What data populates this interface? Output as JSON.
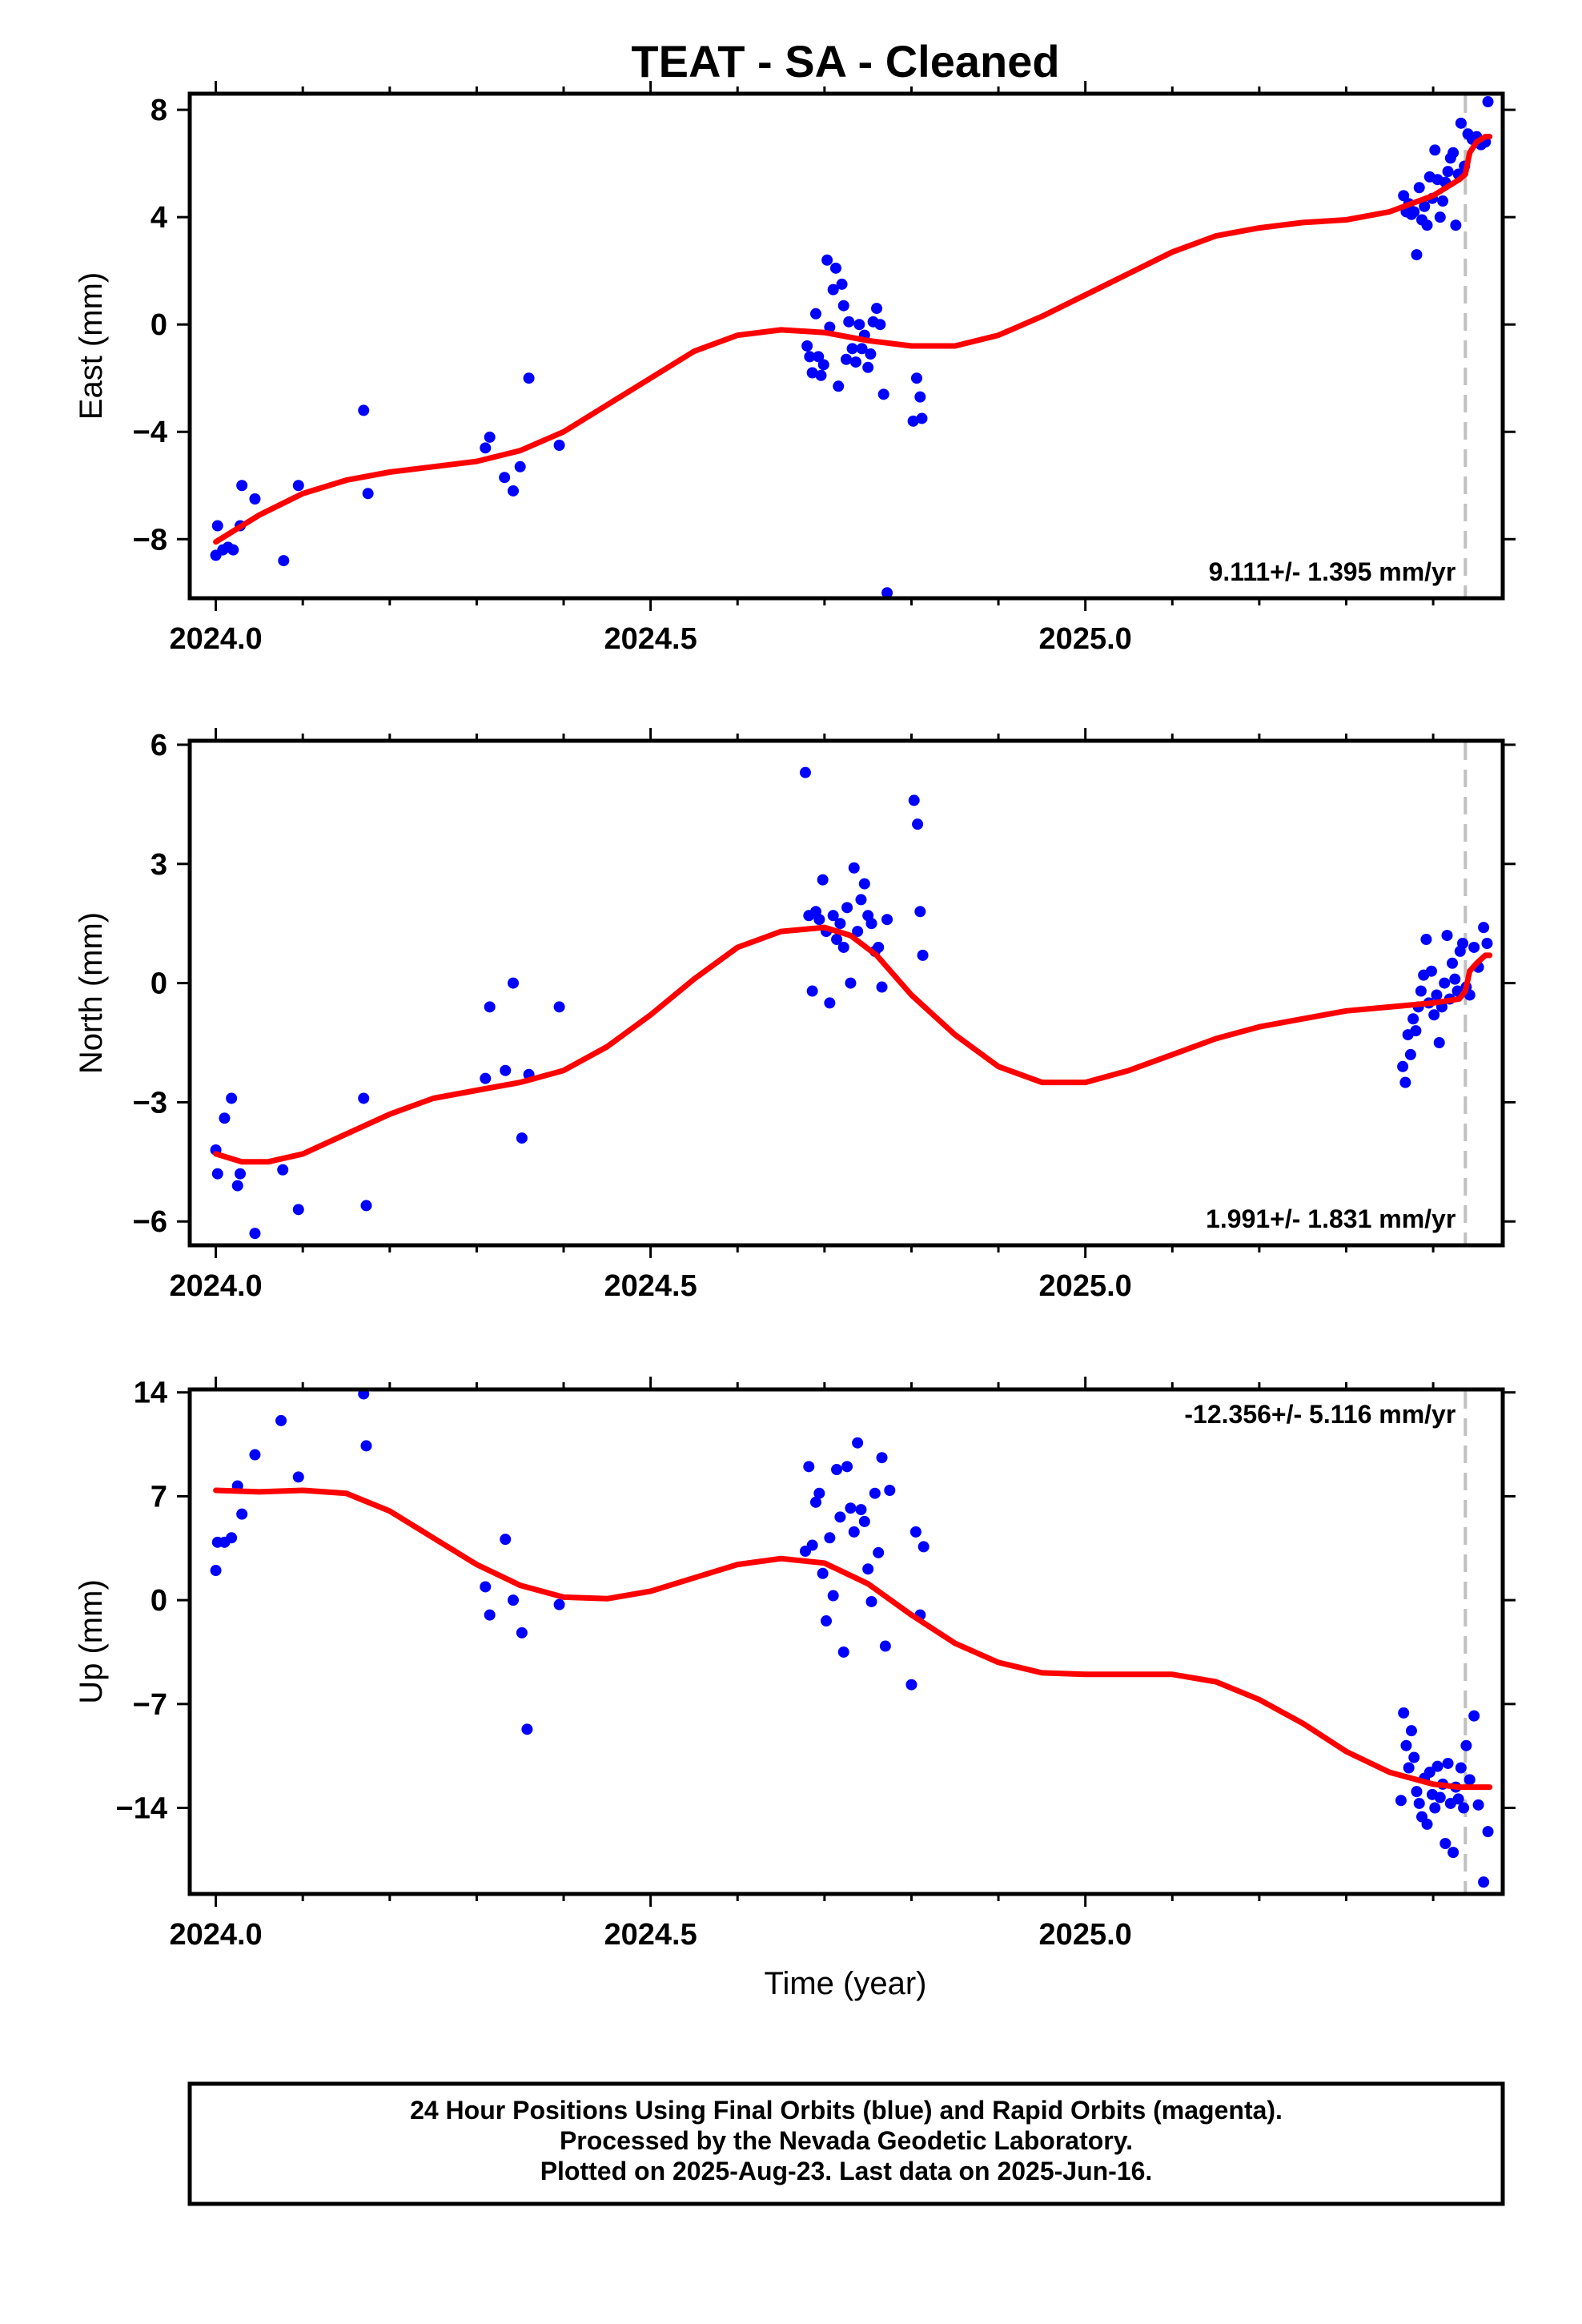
{
  "title": "TEAT  - SA - Cleaned",
  "x_axis_label": "Time (year)",
  "footer": {
    "lines": [
      "24 Hour Positions Using Final Orbits (blue) and Rapid Orbits (magenta).",
      "Processed by the Nevada Geodetic Laboratory.",
      "Plotted on 2025-Aug-23. Last data on 2025-Jun-16."
    ]
  },
  "colors": {
    "points": "#0000ff",
    "fit": "#ff0000",
    "marker_line": "#c0c0c0",
    "frame": "#000000"
  },
  "chart_data": [
    {
      "type": "scatter",
      "panel": "east",
      "ylabel": "East (mm)",
      "xlim": [
        2023.97,
        2025.48
      ],
      "ylim": [
        -10.2,
        8.6
      ],
      "xticks": [
        "2024.0",
        "2024.5",
        "2025.0"
      ],
      "xtick_values": [
        2024.0,
        2024.5,
        2025.0
      ],
      "yticks": [
        "8",
        "4",
        "0",
        "−4",
        "−8"
      ],
      "ytick_values": [
        8,
        4,
        0,
        -4,
        -8
      ],
      "rate_text": "9.111+/- 1.395 mm/yr",
      "rate_position": "bottom-right",
      "last_data_marker_x": 2025.437,
      "series": [
        {
          "role": "final-orbit-points",
          "x": [
            2024.0,
            2024.002,
            2024.008,
            2024.014,
            2024.02,
            2024.028,
            2024.03,
            2024.045,
            2024.078,
            2024.095,
            2024.17,
            2024.175,
            2024.31,
            2024.315,
            2024.332,
            2024.342,
            2024.35,
            2024.36,
            2024.395,
            2024.68,
            2024.683,
            2024.686,
            2024.69,
            2024.693,
            2024.696,
            2024.699,
            2024.703,
            2024.706,
            2024.71,
            2024.713,
            2024.716,
            2024.72,
            2024.722,
            2024.725,
            2024.728,
            2024.732,
            2024.736,
            2024.74,
            2024.743,
            2024.746,
            2024.75,
            2024.753,
            2024.756,
            2024.76,
            2024.764,
            2024.768,
            2024.772,
            2024.802,
            2024.806,
            2024.81,
            2024.812,
            2025.366,
            2025.369,
            2025.372,
            2025.375,
            2025.378,
            2025.381,
            2025.384,
            2025.387,
            2025.39,
            2025.393,
            2025.396,
            2025.399,
            2025.402,
            2025.405,
            2025.408,
            2025.411,
            2025.414,
            2025.417,
            2025.42,
            2025.423,
            2025.426,
            2025.429,
            2025.432,
            2025.436,
            2025.44,
            2025.445,
            2025.45,
            2025.455,
            2025.46,
            2025.463
          ],
          "y": [
            -8.6,
            -7.5,
            -8.4,
            -8.3,
            -8.4,
            -7.5,
            -6.0,
            -6.5,
            -8.8,
            -6.0,
            -3.2,
            -6.3,
            -4.6,
            -4.2,
            -5.7,
            -6.2,
            -5.3,
            -2.0,
            -4.5,
            -0.8,
            -1.2,
            -1.8,
            0.4,
            -1.2,
            -1.9,
            -1.5,
            2.4,
            -0.1,
            1.3,
            2.1,
            -2.3,
            1.5,
            0.7,
            -1.3,
            0.1,
            -0.9,
            -1.4,
            0.0,
            -0.9,
            -0.4,
            -1.6,
            -1.1,
            0.1,
            0.6,
            0.0,
            -2.6,
            -10.0,
            -3.6,
            -2.0,
            -2.7,
            -3.5,
            4.8,
            4.2,
            4.5,
            4.1,
            4.2,
            2.6,
            5.1,
            3.9,
            4.4,
            3.7,
            5.5,
            4.7,
            6.5,
            5.4,
            4.0,
            4.6,
            5.3,
            5.7,
            6.2,
            6.4,
            3.7,
            5.6,
            7.5,
            5.9,
            7.1,
            6.9,
            7.0,
            6.7,
            6.8,
            8.3
          ]
        },
        {
          "role": "fit-curve",
          "x": [
            2024.0,
            2024.05,
            2024.1,
            2024.15,
            2024.2,
            2024.25,
            2024.3,
            2024.35,
            2024.4,
            2024.45,
            2024.5,
            2024.55,
            2024.6,
            2024.65,
            2024.7,
            2024.75,
            2024.8,
            2024.85,
            2024.9,
            2024.95,
            2025.0,
            2025.05,
            2025.1,
            2025.15,
            2025.2,
            2025.25,
            2025.3,
            2025.35,
            2025.4,
            2025.43,
            2025.437,
            2025.442,
            2025.45,
            2025.46,
            2025.465
          ],
          "y": [
            -8.1,
            -7.1,
            -6.3,
            -5.8,
            -5.5,
            -5.3,
            -5.1,
            -4.7,
            -4.0,
            -3.0,
            -2.0,
            -1.0,
            -0.4,
            -0.2,
            -0.3,
            -0.6,
            -0.8,
            -0.8,
            -0.4,
            0.3,
            1.1,
            1.9,
            2.7,
            3.3,
            3.6,
            3.8,
            3.9,
            4.2,
            4.8,
            5.4,
            5.6,
            6.4,
            6.8,
            7.0,
            7.0
          ]
        }
      ]
    },
    {
      "type": "scatter",
      "panel": "north",
      "ylabel": "North (mm)",
      "xlim": [
        2023.97,
        2025.48
      ],
      "ylim": [
        -6.6,
        6.1
      ],
      "xticks": [
        "2024.0",
        "2024.5",
        "2025.0"
      ],
      "xtick_values": [
        2024.0,
        2024.5,
        2025.0
      ],
      "yticks": [
        "6",
        "3",
        "0",
        "−3",
        "−6"
      ],
      "ytick_values": [
        6,
        3,
        0,
        -3,
        -6
      ],
      "rate_text": "1.991+/- 1.831 mm/yr",
      "rate_position": "bottom-right",
      "last_data_marker_x": 2025.437,
      "series": [
        {
          "role": "final-orbit-points",
          "x": [
            2024.0,
            2024.002,
            2024.01,
            2024.018,
            2024.025,
            2024.028,
            2024.045,
            2024.077,
            2024.095,
            2024.17,
            2024.173,
            2024.31,
            2024.315,
            2024.333,
            2024.342,
            2024.352,
            2024.36,
            2024.395,
            2024.678,
            2024.682,
            2024.686,
            2024.69,
            2024.694,
            2024.698,
            2024.702,
            2024.706,
            2024.71,
            2024.714,
            2024.718,
            2024.722,
            2024.726,
            2024.73,
            2024.734,
            2024.738,
            2024.742,
            2024.746,
            2024.75,
            2024.754,
            2024.758,
            2024.762,
            2024.766,
            2024.772,
            2024.803,
            2024.807,
            2024.81,
            2024.813,
            2025.365,
            2025.368,
            2025.371,
            2025.374,
            2025.377,
            2025.38,
            2025.383,
            2025.386,
            2025.389,
            2025.392,
            2025.395,
            2025.398,
            2025.401,
            2025.404,
            2025.407,
            2025.41,
            2025.413,
            2025.416,
            2025.419,
            2025.422,
            2025.425,
            2025.428,
            2025.431,
            2025.434,
            2025.438,
            2025.442,
            2025.447,
            2025.452,
            2025.458,
            2025.462
          ],
          "y": [
            -4.2,
            -4.8,
            -3.4,
            -2.9,
            -5.1,
            -4.8,
            -6.3,
            -4.7,
            -5.7,
            -2.9,
            -5.6,
            -2.4,
            -0.6,
            -2.2,
            0.0,
            -3.9,
            -2.3,
            -0.6,
            5.3,
            1.7,
            -0.2,
            1.8,
            1.6,
            2.6,
            1.3,
            -0.5,
            1.7,
            1.1,
            1.5,
            0.9,
            1.9,
            0.0,
            2.9,
            1.3,
            2.1,
            2.5,
            1.7,
            1.5,
            0.8,
            0.9,
            -0.1,
            1.6,
            4.6,
            4.0,
            1.8,
            0.7,
            -2.1,
            -2.5,
            -1.3,
            -1.8,
            -0.9,
            -1.2,
            -0.6,
            -0.2,
            0.2,
            1.1,
            -0.5,
            0.3,
            -0.8,
            -0.3,
            -1.5,
            -0.6,
            0.0,
            1.2,
            -0.4,
            0.5,
            0.1,
            -0.2,
            0.8,
            1.0,
            -0.1,
            -0.3,
            0.9,
            0.4,
            1.4,
            1.0
          ],
          "note": ""
        },
        {
          "role": "fit-curve",
          "x": [
            2024.0,
            2024.03,
            2024.06,
            2024.1,
            2024.15,
            2024.2,
            2024.25,
            2024.3,
            2024.35,
            2024.4,
            2024.45,
            2024.5,
            2024.55,
            2024.6,
            2024.65,
            2024.7,
            2024.73,
            2024.76,
            2024.8,
            2024.85,
            2024.9,
            2024.95,
            2025.0,
            2025.05,
            2025.1,
            2025.15,
            2025.2,
            2025.25,
            2025.3,
            2025.35,
            2025.4,
            2025.43,
            2025.437,
            2025.442,
            2025.45,
            2025.46,
            2025.465
          ],
          "y": [
            -4.3,
            -4.5,
            -4.5,
            -4.3,
            -3.8,
            -3.3,
            -2.9,
            -2.7,
            -2.5,
            -2.2,
            -1.6,
            -0.8,
            0.1,
            0.9,
            1.3,
            1.4,
            1.2,
            0.7,
            -0.3,
            -1.3,
            -2.1,
            -2.5,
            -2.5,
            -2.2,
            -1.8,
            -1.4,
            -1.1,
            -0.9,
            -0.7,
            -0.6,
            -0.5,
            -0.4,
            -0.2,
            0.3,
            0.5,
            0.7,
            0.7
          ]
        }
      ]
    },
    {
      "type": "scatter",
      "panel": "up",
      "ylabel": "Up (mm)",
      "xlim": [
        2023.97,
        2025.48
      ],
      "ylim": [
        -19.8,
        14.2
      ],
      "xticks": [
        "2024.0",
        "2024.5",
        "2025.0"
      ],
      "xtick_values": [
        2024.0,
        2024.5,
        2025.0
      ],
      "yticks": [
        "14",
        "7",
        "0",
        "−7",
        "−14"
      ],
      "ytick_values": [
        14,
        7,
        0,
        -7,
        -14
      ],
      "rate_text": "-12.356+/- 5.116 mm/yr",
      "rate_position": "top-right",
      "last_data_marker_x": 2025.437,
      "series": [
        {
          "role": "final-orbit-points",
          "x": [
            2024.0,
            2024.002,
            2024.01,
            2024.018,
            2024.025,
            2024.03,
            2024.045,
            2024.075,
            2024.095,
            2024.17,
            2024.173,
            2024.31,
            2024.315,
            2024.333,
            2024.342,
            2024.352,
            2024.358,
            2024.395,
            2024.678,
            2024.682,
            2024.686,
            2024.69,
            2024.694,
            2024.698,
            2024.702,
            2024.706,
            2024.71,
            2024.714,
            2024.718,
            2024.722,
            2024.726,
            2024.73,
            2024.734,
            2024.738,
            2024.742,
            2024.746,
            2024.75,
            2024.754,
            2024.758,
            2024.762,
            2024.766,
            2024.77,
            2024.775,
            2024.8,
            2024.805,
            2024.81,
            2024.814,
            2025.363,
            2025.366,
            2025.369,
            2025.372,
            2025.375,
            2025.378,
            2025.381,
            2025.384,
            2025.387,
            2025.39,
            2025.393,
            2025.396,
            2025.399,
            2025.402,
            2025.405,
            2025.408,
            2025.411,
            2025.414,
            2025.417,
            2025.42,
            2025.423,
            2025.426,
            2025.429,
            2025.432,
            2025.435,
            2025.438,
            2025.442,
            2025.447,
            2025.452,
            2025.458,
            2025.463
          ],
          "y": [
            2.0,
            3.9,
            3.9,
            4.2,
            7.7,
            5.8,
            9.8,
            12.1,
            8.3,
            13.9,
            10.4,
            0.9,
            -1.0,
            4.1,
            0.0,
            -2.2,
            -8.7,
            -0.3,
            3.3,
            9.0,
            3.7,
            6.6,
            7.2,
            1.8,
            -1.4,
            4.2,
            0.3,
            8.8,
            5.6,
            -3.5,
            9.0,
            6.2,
            4.6,
            10.6,
            6.1,
            5.3,
            2.1,
            -0.1,
            7.2,
            3.2,
            9.6,
            -3.1,
            7.4,
            -5.7,
            4.6,
            -1.0,
            3.6,
            -13.5,
            -7.6,
            -9.8,
            -11.3,
            -8.8,
            -10.6,
            -12.9,
            -13.7,
            -14.6,
            -12.0,
            -15.1,
            -11.6,
            -13.1,
            -14.0,
            -11.2,
            -13.3,
            -12.4,
            -16.4,
            -11.0,
            -13.7,
            -17.0,
            -12.6,
            -13.4,
            -11.3,
            -14.0,
            -9.8,
            -12.1,
            -7.8,
            -13.8,
            -19.0,
            -15.6
          ]
        },
        {
          "role": "fit-curve",
          "x": [
            2024.0,
            2024.05,
            2024.1,
            2024.15,
            2024.2,
            2024.25,
            2024.3,
            2024.35,
            2024.4,
            2024.45,
            2024.5,
            2024.55,
            2024.6,
            2024.65,
            2024.7,
            2024.75,
            2024.8,
            2024.85,
            2024.9,
            2024.95,
            2025.0,
            2025.05,
            2025.1,
            2025.15,
            2025.2,
            2025.25,
            2025.3,
            2025.35,
            2025.4,
            2025.43,
            2025.45,
            2025.465
          ],
          "y": [
            7.4,
            7.3,
            7.4,
            7.2,
            6.0,
            4.2,
            2.4,
            1.0,
            0.2,
            0.1,
            0.6,
            1.5,
            2.4,
            2.8,
            2.5,
            1.1,
            -1.0,
            -2.9,
            -4.2,
            -4.9,
            -5.0,
            -5.0,
            -5.0,
            -5.5,
            -6.7,
            -8.3,
            -10.2,
            -11.6,
            -12.4,
            -12.6,
            -12.6,
            -12.6
          ]
        }
      ]
    }
  ]
}
